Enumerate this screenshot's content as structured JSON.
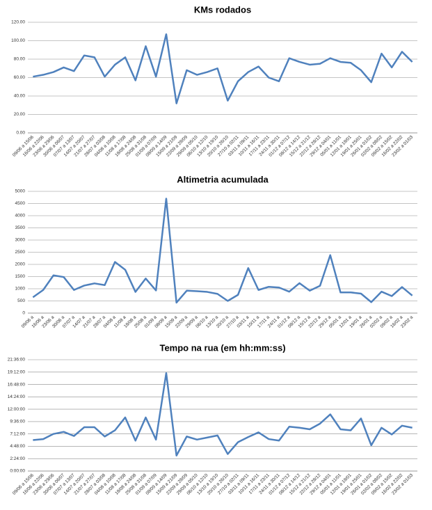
{
  "chart_data": [
    {
      "type": "line",
      "title": "KMs rodados",
      "categories": [
        "09/06 a 15/06",
        "16/06 a 22/06",
        "23/06 a 29/06",
        "30/06 a 06/07",
        "07/07 a 13/07",
        "14/07 a 20/07",
        "21/07 a 27/07",
        "28/07 a 03/08",
        "04/08 a 10/08",
        "11/08 a 17/08",
        "18/08 a 24/08",
        "25/08 a 31/08",
        "01/09 a 07/09",
        "08/09 a 14/09",
        "15/09 a 21/09",
        "22/09 a 28/09",
        "29/09 a 05/10",
        "06/10 a 12/10",
        "13/10 a 19/10",
        "20/10 a 26/10",
        "27/10 a 02/11",
        "03/11 a 09/11",
        "10/11 a 16/11",
        "17/11 a 23/11",
        "24/11 a 30/11",
        "01/12 a 07/12",
        "08/12 a 14/12",
        "15/12 a 21/12",
        "22/12 a 28/12",
        "29/12 a 04/01",
        "05/01 a 11/01",
        "12/01 a 18/01",
        "19/01 a 25/01",
        "26/01 a 01/02",
        "02/02 a 08/02",
        "09/02 a 15/02",
        "16/02 a 22/02",
        "23/02 a 01/03"
      ],
      "values": [
        61,
        63,
        66,
        71,
        67,
        84,
        82,
        61,
        74,
        82,
        57,
        94,
        61,
        107,
        32,
        68,
        63,
        66,
        70,
        35,
        56,
        66,
        72,
        60,
        56,
        81,
        77,
        74,
        75,
        81,
        77,
        76,
        68,
        55,
        86,
        71,
        88,
        77
      ],
      "color": "#4f81bd",
      "ylim": [
        0,
        120
      ],
      "yticks": [
        {
          "value": 0,
          "label": "0.00"
        },
        {
          "value": 20,
          "label": "20.00"
        },
        {
          "value": 40,
          "label": "40.00"
        },
        {
          "value": 60,
          "label": "60.00"
        },
        {
          "value": 80,
          "label": "80.00"
        },
        {
          "value": 100,
          "label": "100.00"
        },
        {
          "value": 120,
          "label": "120.00"
        }
      ],
      "grid": true
    },
    {
      "type": "line",
      "title": "Altimetria acumulada",
      "categories": [
        "09/06 a",
        "16/06 a",
        "23/06 a",
        "30/06 a",
        "07/07 a",
        "14/07 a",
        "21/07 a",
        "28/07 a",
        "04/08 a",
        "11/08 a",
        "18/08 a",
        "25/08 a",
        "01/09 a",
        "08/09 a",
        "15/09 a",
        "22/09 a",
        "29/09 a",
        "06/10 a",
        "13/10 a",
        "20/10 a",
        "27/10 a",
        "03/11 a",
        "10/11 a",
        "17/11 a",
        "24/11 a",
        "01/12 a",
        "08/12 a",
        "15/12 a",
        "22/12 a",
        "29/12 a",
        "05/01 a",
        "12/01 a",
        "19/01 a",
        "26/01 a",
        "02/02 a",
        "09/02 a",
        "16/02 a",
        "23/02 a"
      ],
      "values": [
        650,
        950,
        1550,
        1480,
        950,
        1130,
        1220,
        1150,
        2100,
        1780,
        870,
        1420,
        930,
        4700,
        430,
        920,
        900,
        870,
        790,
        500,
        750,
        1850,
        950,
        1080,
        1050,
        880,
        1230,
        920,
        1120,
        2380,
        850,
        850,
        800,
        450,
        880,
        700,
        1070,
        720
      ],
      "color": "#4f81bd",
      "ylim": [
        0,
        5000
      ],
      "yticks": [
        0,
        500,
        1000,
        1500,
        2000,
        2500,
        3000,
        3500,
        4000,
        4500,
        5000
      ],
      "grid": true
    },
    {
      "type": "line",
      "title": "Tempo na rua (em hh:mm:ss)",
      "categories": [
        "09/06 a 15/06",
        "16/06 a 22/06",
        "23/06 a 29/06",
        "30/06 a 06/07",
        "07/07 a 13/07",
        "14/07 a 20/07",
        "21/07 a 27/07",
        "28/07 a 03/08",
        "04/08 a 10/08",
        "11/08 a 17/08",
        "18/08 a 24/08",
        "25/08 a 31/08",
        "01/09 a 07/09",
        "08/09 a 14/09",
        "15/09 a 21/09",
        "22/09 a 28/09",
        "29/09 a 05/10",
        "06/10 a 12/10",
        "13/10 a 19/10",
        "20/10 a 26/10",
        "27/10 a 02/11",
        "03/11 a 09/11",
        "10/11 a 16/11",
        "17/11 a 23/11",
        "24/11 a 30/11",
        "01/12 a 07/12",
        "08/12 a 14/12",
        "15/12 a 21/12",
        "22/12 a 28/12",
        "29/12 a 04/01",
        "05/01 a 11/01",
        "12/01 a 18/01",
        "19/01 a 25/01",
        "26/01 a 01/02",
        "02/02 a 08/02",
        "09/02 a 15/02",
        "16/02 a 22/02",
        "23/02 a 01/03"
      ],
      "values": [
        6.0,
        6.2,
        7.2,
        7.6,
        6.8,
        8.5,
        8.5,
        6.7,
        7.9,
        10.4,
        5.9,
        10.4,
        6.1,
        19.0,
        3.0,
        6.7,
        6.1,
        6.5,
        6.9,
        3.3,
        5.6,
        6.6,
        7.5,
        6.2,
        5.9,
        8.6,
        8.4,
        8.1,
        9.2,
        11.0,
        8.1,
        7.9,
        10.2,
        5.0,
        8.4,
        7.1,
        8.8,
        8.4
      ],
      "color": "#4f81bd",
      "ylim": [
        0,
        21.6
      ],
      "yticks": [
        {
          "value": 0,
          "label": "0:00:00"
        },
        {
          "value": 2.4,
          "label": "2:24:00"
        },
        {
          "value": 4.8,
          "label": "4:48:00"
        },
        {
          "value": 7.2,
          "label": "7:12:00"
        },
        {
          "value": 9.6,
          "label": "9:36:00"
        },
        {
          "value": 12,
          "label": "12:00:00"
        },
        {
          "value": 14.4,
          "label": "14:24:00"
        },
        {
          "value": 16.8,
          "label": "16:48:00"
        },
        {
          "value": 19.2,
          "label": "19:12:00"
        },
        {
          "value": 21.6,
          "label": "21:36:00"
        }
      ],
      "grid": true
    }
  ]
}
